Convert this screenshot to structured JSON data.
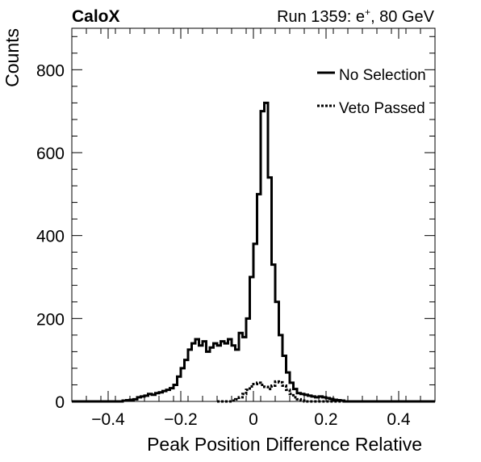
{
  "header": {
    "experiment": "CaloX",
    "run_prefix": "Run 1359: e",
    "run_sup": "+",
    "run_suffix": ", 80 GeV"
  },
  "chart_data": {
    "type": "step-histogram",
    "xlabel": "Peak Position Difference Relative",
    "ylabel": "Counts",
    "xlim": [
      -0.5,
      0.5
    ],
    "ylim": [
      0,
      900
    ],
    "xticks": [
      {
        "value": -0.4,
        "label": "−0.4"
      },
      {
        "value": -0.2,
        "label": "−0.2"
      },
      {
        "value": 0,
        "label": "0"
      },
      {
        "value": 0.2,
        "label": "0.2"
      },
      {
        "value": 0.4,
        "label": "0.4"
      }
    ],
    "yticks": [
      {
        "value": 0,
        "label": "0"
      },
      {
        "value": 200,
        "label": "200"
      },
      {
        "value": 400,
        "label": "400"
      },
      {
        "value": 600,
        "label": "600"
      },
      {
        "value": 800,
        "label": "800"
      }
    ],
    "grid": false,
    "legend_position": "top-right",
    "bin_width": 0.01,
    "series": [
      {
        "name": "No Selection",
        "style": "solid",
        "color": "#000000",
        "x_start": -0.5,
        "values": [
          0,
          0,
          0,
          0,
          0,
          0,
          0,
          0,
          0,
          0,
          0,
          0,
          0,
          0,
          2,
          3,
          4,
          5,
          10,
          12,
          14,
          18,
          16,
          20,
          22,
          25,
          28,
          32,
          40,
          60,
          80,
          100,
          125,
          140,
          150,
          135,
          145,
          120,
          130,
          140,
          135,
          145,
          140,
          150,
          135,
          125,
          165,
          155,
          200,
          300,
          380,
          500,
          700,
          720,
          540,
          330,
          240,
          160,
          110,
          70,
          45,
          30,
          20,
          18,
          16,
          14,
          12,
          10,
          12,
          10,
          8,
          6,
          4,
          3,
          2,
          0,
          0,
          0,
          0,
          0,
          0,
          0,
          0,
          0,
          0,
          0,
          0,
          0,
          0,
          0,
          0,
          0,
          0,
          0,
          0,
          0,
          0,
          0,
          0,
          0
        ]
      },
      {
        "name": "Veto Passed",
        "style": "dotted",
        "color": "#000000",
        "x_start": -0.1,
        "values": [
          0,
          0,
          0,
          0,
          2,
          5,
          10,
          18,
          28,
          36,
          42,
          45,
          40,
          35,
          30,
          38,
          48,
          46,
          38,
          28,
          18,
          10,
          5,
          2,
          0,
          0,
          0,
          0,
          0,
          0,
          0,
          0,
          0,
          0,
          0,
          0,
          0,
          0,
          0,
          0
        ]
      }
    ]
  }
}
